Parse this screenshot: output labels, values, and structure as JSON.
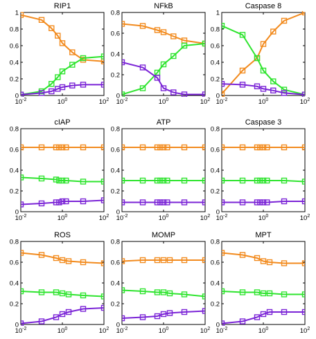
{
  "figure": {
    "background": "#ffffff",
    "axes_color": "#000000",
    "grid": false
  },
  "colors": {
    "orange": "#f28a1d",
    "green": "#2ee42e",
    "purple": "#7a23d6"
  },
  "x_tick_labels": [
    {
      "base": "10",
      "exp": "-2",
      "pos": -2
    },
    {
      "base": "10",
      "exp": "0",
      "pos": 0
    },
    {
      "base": "10",
      "exp": "2",
      "pos": 2
    }
  ],
  "chart_data": [
    {
      "title": "RIP1",
      "type": "line",
      "xscale": "log",
      "xlim": [
        0.01,
        100
      ],
      "ylim": [
        0,
        1
      ],
      "yticks": [
        "0",
        "0.2",
        "0.4",
        "0.6",
        "0.8",
        "1"
      ],
      "x": [
        0.01,
        0.1,
        0.3,
        0.6,
        1,
        3,
        10,
        100
      ],
      "series": [
        {
          "color": "orange",
          "values": [
            0.97,
            0.91,
            0.81,
            0.72,
            0.63,
            0.52,
            0.43,
            0.41
          ],
          "x": [
            0.01,
            0.1,
            0.3,
            0.6,
            1,
            3,
            10,
            100
          ]
        },
        {
          "color": "green",
          "values": [
            0.01,
            0.05,
            0.14,
            0.22,
            0.29,
            0.37,
            0.45,
            0.47
          ],
          "x": [
            0.01,
            0.1,
            0.3,
            0.6,
            1,
            3,
            10,
            100
          ]
        },
        {
          "color": "purple",
          "values": [
            0.01,
            0.03,
            0.05,
            0.08,
            0.1,
            0.12,
            0.13,
            0.13
          ],
          "x": [
            0.01,
            0.1,
            0.3,
            0.6,
            1,
            3,
            10,
            100
          ]
        }
      ]
    },
    {
      "title": "NFkB",
      "type": "line",
      "xscale": "log",
      "xlim": [
        0.01,
        100
      ],
      "ylim": [
        0,
        0.8
      ],
      "yticks": [
        "0",
        "0.2",
        "0.4",
        "0.6",
        "0.8"
      ],
      "series": [
        {
          "color": "orange",
          "values": [
            0.69,
            0.67,
            0.63,
            0.61,
            0.57,
            0.53,
            0.5
          ],
          "x": [
            0.01,
            0.1,
            0.5,
            1,
            3,
            10,
            100
          ]
        },
        {
          "color": "green",
          "values": [
            0.01,
            0.07,
            0.22,
            0.3,
            0.38,
            0.48,
            0.5
          ],
          "x": [
            0.01,
            0.1,
            0.5,
            1,
            3,
            10,
            100
          ]
        },
        {
          "color": "purple",
          "values": [
            0.32,
            0.27,
            0.17,
            0.07,
            0.03,
            0.01,
            0.01
          ],
          "x": [
            0.01,
            0.1,
            0.5,
            1,
            3,
            10,
            100
          ]
        }
      ]
    },
    {
      "title": "Caspase 8",
      "type": "line",
      "xscale": "log",
      "xlim": [
        0.01,
        100
      ],
      "ylim": [
        0,
        1
      ],
      "yticks": [
        "0",
        "0.2",
        "0.4",
        "0.6",
        "0.8",
        "1"
      ],
      "series": [
        {
          "color": "orange",
          "values": [
            0.02,
            0.3,
            0.45,
            0.62,
            0.77,
            0.9,
            1.0
          ],
          "x": [
            0.01,
            0.1,
            0.5,
            1,
            3,
            10,
            100
          ]
        },
        {
          "color": "green",
          "values": [
            0.84,
            0.73,
            0.45,
            0.3,
            0.17,
            0.07,
            0.01
          ],
          "x": [
            0.01,
            0.1,
            0.5,
            1,
            3,
            10,
            100
          ]
        },
        {
          "color": "purple",
          "values": [
            0.14,
            0.13,
            0.11,
            0.08,
            0.06,
            0.03,
            0.01
          ],
          "x": [
            0.01,
            0.1,
            0.5,
            1,
            3,
            10,
            100
          ]
        }
      ]
    },
    {
      "title": "cIAP",
      "type": "line",
      "xscale": "log",
      "xlim": [
        0.01,
        100
      ],
      "ylim": [
        0,
        0.8
      ],
      "yticks": [
        "0",
        "0.2",
        "0.4",
        "0.6",
        "0.8"
      ],
      "series": [
        {
          "color": "orange",
          "values": [
            0.62,
            0.62,
            0.62,
            0.62,
            0.62,
            0.62,
            0.62,
            0.62
          ],
          "x": [
            0.01,
            0.1,
            0.5,
            0.7,
            1,
            1.5,
            10,
            100
          ]
        },
        {
          "color": "green",
          "values": [
            0.33,
            0.32,
            0.31,
            0.3,
            0.3,
            0.3,
            0.29,
            0.29
          ],
          "x": [
            0.01,
            0.1,
            0.5,
            0.7,
            1,
            1.5,
            10,
            100
          ]
        },
        {
          "color": "purple",
          "values": [
            0.07,
            0.08,
            0.09,
            0.09,
            0.1,
            0.1,
            0.1,
            0.11
          ],
          "x": [
            0.01,
            0.1,
            0.5,
            0.7,
            1,
            1.5,
            10,
            100
          ]
        }
      ]
    },
    {
      "title": "ATP",
      "type": "line",
      "xscale": "log",
      "xlim": [
        0.01,
        100
      ],
      "ylim": [
        0,
        0.8
      ],
      "yticks": [
        "0",
        "0.2",
        "0.4",
        "0.6",
        "0.8"
      ],
      "series": [
        {
          "color": "orange",
          "values": [
            0.62,
            0.62,
            0.62,
            0.62,
            0.62,
            0.62,
            0.62,
            0.62
          ],
          "x": [
            0.01,
            0.1,
            0.5,
            0.7,
            1,
            1.5,
            10,
            100
          ]
        },
        {
          "color": "green",
          "values": [
            0.3,
            0.3,
            0.3,
            0.3,
            0.3,
            0.3,
            0.3,
            0.3
          ],
          "x": [
            0.01,
            0.1,
            0.5,
            0.7,
            1,
            1.5,
            10,
            100
          ]
        },
        {
          "color": "purple",
          "values": [
            0.09,
            0.09,
            0.09,
            0.09,
            0.09,
            0.09,
            0.09,
            0.09
          ],
          "x": [
            0.01,
            0.1,
            0.5,
            0.7,
            1,
            1.5,
            10,
            100
          ]
        }
      ]
    },
    {
      "title": "Caspase 3",
      "type": "line",
      "xscale": "log",
      "xlim": [
        0.01,
        100
      ],
      "ylim": [
        0,
        0.8
      ],
      "yticks": [
        "0",
        "0.2",
        "0.4",
        "0.6",
        "0.8"
      ],
      "series": [
        {
          "color": "orange",
          "values": [
            0.62,
            0.62,
            0.62,
            0.62,
            0.62,
            0.62,
            0.62,
            0.62
          ],
          "x": [
            0.01,
            0.1,
            0.5,
            0.7,
            1,
            1.5,
            10,
            100
          ]
        },
        {
          "color": "green",
          "values": [
            0.3,
            0.3,
            0.3,
            0.3,
            0.3,
            0.3,
            0.3,
            0.29
          ],
          "x": [
            0.01,
            0.1,
            0.5,
            0.7,
            1,
            1.5,
            10,
            100
          ]
        },
        {
          "color": "purple",
          "values": [
            0.09,
            0.09,
            0.09,
            0.09,
            0.09,
            0.09,
            0.1,
            0.1
          ],
          "x": [
            0.01,
            0.1,
            0.5,
            0.7,
            1,
            1.5,
            10,
            100
          ]
        }
      ]
    },
    {
      "title": "ROS",
      "type": "line",
      "xscale": "log",
      "xlim": [
        0.01,
        100
      ],
      "ylim": [
        0,
        0.8
      ],
      "yticks": [
        "0",
        "0.2",
        "0.4",
        "0.6",
        "0.8"
      ],
      "series": [
        {
          "color": "orange",
          "values": [
            0.69,
            0.67,
            0.64,
            0.62,
            0.61,
            0.6,
            0.59
          ],
          "x": [
            0.01,
            0.1,
            0.5,
            1,
            2,
            10,
            100
          ]
        },
        {
          "color": "green",
          "values": [
            0.32,
            0.31,
            0.31,
            0.3,
            0.29,
            0.28,
            0.27
          ],
          "x": [
            0.01,
            0.1,
            0.5,
            1,
            2,
            10,
            100
          ]
        },
        {
          "color": "purple",
          "values": [
            0.01,
            0.03,
            0.07,
            0.1,
            0.12,
            0.15,
            0.16
          ],
          "x": [
            0.01,
            0.1,
            0.5,
            1,
            2,
            10,
            100
          ]
        }
      ]
    },
    {
      "title": "MOMP",
      "type": "line",
      "xscale": "log",
      "xlim": [
        0.01,
        100
      ],
      "ylim": [
        0,
        0.8
      ],
      "yticks": [
        "0",
        "0.2",
        "0.4",
        "0.6",
        "0.8"
      ],
      "series": [
        {
          "color": "orange",
          "values": [
            0.61,
            0.62,
            0.62,
            0.62,
            0.62,
            0.62,
            0.62
          ],
          "x": [
            0.01,
            0.1,
            0.5,
            1,
            2,
            10,
            100
          ]
        },
        {
          "color": "green",
          "values": [
            0.33,
            0.32,
            0.31,
            0.31,
            0.3,
            0.29,
            0.27
          ],
          "x": [
            0.01,
            0.1,
            0.5,
            1,
            2,
            10,
            100
          ]
        },
        {
          "color": "purple",
          "values": [
            0.06,
            0.07,
            0.08,
            0.1,
            0.11,
            0.12,
            0.13
          ],
          "x": [
            0.01,
            0.1,
            0.5,
            1,
            2,
            10,
            100
          ]
        }
      ]
    },
    {
      "title": "MPT",
      "type": "line",
      "xscale": "log",
      "xlim": [
        0.01,
        100
      ],
      "ylim": [
        0,
        0.8
      ],
      "yticks": [
        "0",
        "0.2",
        "0.4",
        "0.6",
        "0.8"
      ],
      "series": [
        {
          "color": "orange",
          "values": [
            0.69,
            0.67,
            0.64,
            0.61,
            0.6,
            0.59,
            0.59
          ],
          "x": [
            0.01,
            0.1,
            0.5,
            1,
            2,
            10,
            100
          ]
        },
        {
          "color": "green",
          "values": [
            0.32,
            0.31,
            0.31,
            0.3,
            0.3,
            0.29,
            0.29
          ],
          "x": [
            0.01,
            0.1,
            0.5,
            1,
            2,
            10,
            100
          ]
        },
        {
          "color": "purple",
          "values": [
            0.01,
            0.03,
            0.07,
            0.1,
            0.12,
            0.12,
            0.12
          ],
          "x": [
            0.01,
            0.1,
            0.5,
            1,
            2,
            10,
            100
          ]
        }
      ]
    }
  ]
}
